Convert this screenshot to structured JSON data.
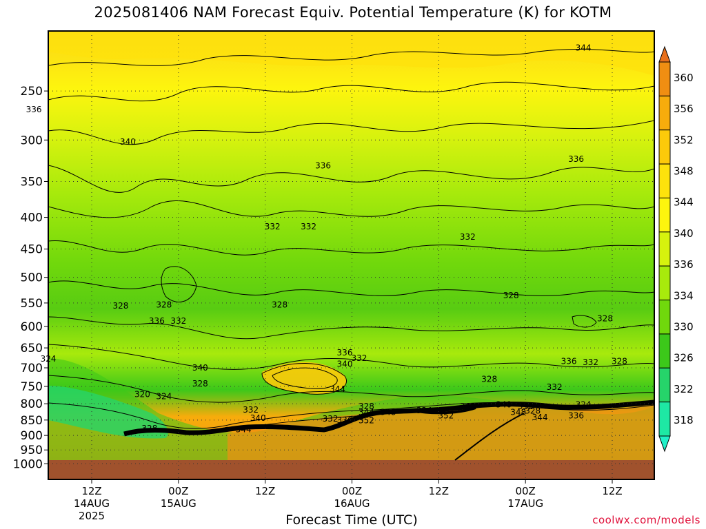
{
  "chart_data": {
    "type": "heatmap",
    "title": "2025081406 NAM Forecast Equiv. Potential Temperature (K) for KOTM",
    "xlabel": "Forecast Time (UTC)",
    "ylabel": "",
    "y_scale": "log-pressure",
    "y_ticks": [
      250,
      300,
      350,
      400,
      450,
      500,
      550,
      600,
      650,
      700,
      750,
      800,
      850,
      900,
      950,
      1000
    ],
    "y_tick_labels": [
      "250",
      "300",
      "350",
      "400",
      "450",
      "500",
      "550",
      "600",
      "650",
      "700",
      "750",
      "800",
      "850",
      "900",
      "950",
      "1000"
    ],
    "ylim": [
      1000,
      200
    ],
    "x_ticks": [
      {
        "label": "12Z",
        "date": "14AUG",
        "year": "2025",
        "hour": 12
      },
      {
        "label": "00Z",
        "date": "15AUG",
        "year": "",
        "hour": 24
      },
      {
        "label": "12Z",
        "date": "",
        "year": "",
        "hour": 36
      },
      {
        "label": "00Z",
        "date": "16AUG",
        "year": "",
        "hour": 48
      },
      {
        "label": "12Z",
        "date": "",
        "year": "",
        "hour": 60
      },
      {
        "label": "00Z",
        "date": "17AUG",
        "year": "",
        "hour": 72
      },
      {
        "label": "12Z",
        "date": "",
        "year": "",
        "hour": 84
      }
    ],
    "colorbar": {
      "labels": [
        "360",
        "356",
        "352",
        "348",
        "344",
        "340",
        "336",
        "334",
        "330",
        "326",
        "322",
        "318"
      ],
      "colors": [
        "#e8701c",
        "#f08e12",
        "#f7ac0c",
        "#fcca0a",
        "#fde20c",
        "#fdf50e",
        "#d6f20e",
        "#a8ea0c",
        "#70d80c",
        "#3cc81a",
        "#26d46a",
        "#1ee8a4",
        "#20f0c8"
      ]
    },
    "contour_labels": [
      {
        "text": "344",
        "x_hour": 80,
        "p": 213
      },
      {
        "text": "336",
        "x_hour": 4,
        "p": 268
      },
      {
        "text": "340",
        "x_hour": 17,
        "p": 302
      },
      {
        "text": "336",
        "x_hour": 44,
        "p": 330
      },
      {
        "text": "336",
        "x_hour": 79,
        "p": 322
      },
      {
        "text": "332",
        "x_hour": 37,
        "p": 414
      },
      {
        "text": "332",
        "x_hour": 42,
        "p": 414
      },
      {
        "text": "332",
        "x_hour": 64,
        "p": 430
      },
      {
        "text": "328",
        "x_hour": 70,
        "p": 535
      },
      {
        "text": "328",
        "x_hour": 16,
        "p": 556
      },
      {
        "text": "328",
        "x_hour": 22,
        "p": 554
      },
      {
        "text": "328",
        "x_hour": 38,
        "p": 554
      },
      {
        "text": "336",
        "x_hour": 21,
        "p": 588
      },
      {
        "text": "332",
        "x_hour": 24,
        "p": 588
      },
      {
        "text": "328",
        "x_hour": 83,
        "p": 583
      },
      {
        "text": "336",
        "x_hour": 47,
        "p": 662
      },
      {
        "text": "332",
        "x_hour": 49,
        "p": 675
      },
      {
        "text": "340",
        "x_hour": 47,
        "p": 690
      },
      {
        "text": "336",
        "x_hour": 78,
        "p": 683
      },
      {
        "text": "332",
        "x_hour": 81,
        "p": 686
      },
      {
        "text": "328",
        "x_hour": 85,
        "p": 683
      },
      {
        "text": "324",
        "x_hour": 6,
        "p": 677
      },
      {
        "text": "340",
        "x_hour": 27,
        "p": 700
      },
      {
        "text": "328",
        "x_hour": 27,
        "p": 742
      },
      {
        "text": "328",
        "x_hour": 67,
        "p": 730
      },
      {
        "text": "344",
        "x_hour": 46,
        "p": 758
      },
      {
        "text": "332",
        "x_hour": 76,
        "p": 752
      },
      {
        "text": "320",
        "x_hour": 19,
        "p": 773
      },
      {
        "text": "324",
        "x_hour": 22,
        "p": 778
      },
      {
        "text": "324",
        "x_hour": 80,
        "p": 803
      },
      {
        "text": "328",
        "x_hour": 50,
        "p": 808
      },
      {
        "text": "332",
        "x_hour": 34,
        "p": 818
      },
      {
        "text": "344",
        "x_hour": 50,
        "p": 826
      },
      {
        "text": "348",
        "x_hour": 53,
        "p": 826
      },
      {
        "text": "324",
        "x_hour": 58,
        "p": 820
      },
      {
        "text": "348",
        "x_hour": 64,
        "p": 808
      },
      {
        "text": "340",
        "x_hour": 69,
        "p": 803
      },
      {
        "text": "332",
        "x_hour": 72,
        "p": 808
      },
      {
        "text": "328",
        "x_hour": 73,
        "p": 822
      },
      {
        "text": "348",
        "x_hour": 71,
        "p": 826
      },
      {
        "text": "352",
        "x_hour": 61,
        "p": 836
      },
      {
        "text": "344",
        "x_hour": 74,
        "p": 842
      },
      {
        "text": "336",
        "x_hour": 79,
        "p": 836
      },
      {
        "text": "340",
        "x_hour": 35,
        "p": 844
      },
      {
        "text": "332",
        "x_hour": 45,
        "p": 846
      },
      {
        "text": "336",
        "x_hour": 47,
        "p": 850
      },
      {
        "text": "352",
        "x_hour": 50,
        "p": 852
      },
      {
        "text": "328",
        "x_hour": 20,
        "p": 877
      },
      {
        "text": "344",
        "x_hour": 33,
        "p": 880
      }
    ]
  },
  "credit": "coolwx.com/models"
}
